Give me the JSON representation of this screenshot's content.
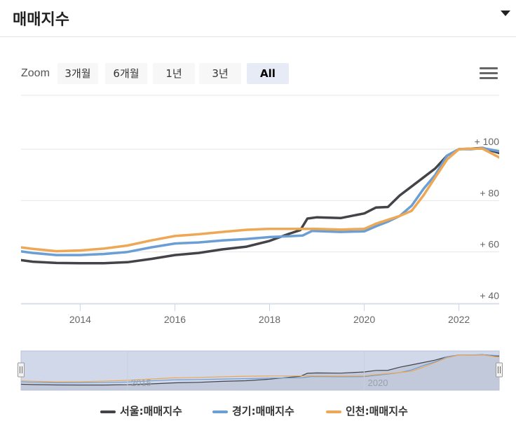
{
  "header": {
    "title": "매매지수",
    "toggle_icon": "caret-down-icon"
  },
  "zoom": {
    "label": "Zoom",
    "buttons": [
      "3개월",
      "6개월",
      "1년",
      "3년",
      "All"
    ],
    "active": "All"
  },
  "menu_icon": "hamburger-menu-icon",
  "chart_data": {
    "type": "line",
    "title": "",
    "xlabel": "",
    "ylabel": "",
    "x_ticks": [
      "2014",
      "2016",
      "2018",
      "2020",
      "2022"
    ],
    "y_ticks": [
      "+ 40",
      "+ 60",
      "+ 80",
      "+ 100"
    ],
    "ylim": [
      40,
      100
    ],
    "xlim": [
      2012.75,
      2022.85
    ],
    "grid": true,
    "legend_position": "bottom",
    "series": [
      {
        "name": "서울:매매지수",
        "color": "#434348",
        "points": [
          [
            2012.75,
            56.8
          ],
          [
            2013.0,
            56.2
          ],
          [
            2013.5,
            55.7
          ],
          [
            2014.0,
            55.6
          ],
          [
            2014.5,
            55.6
          ],
          [
            2015.0,
            56.0
          ],
          [
            2015.5,
            57.3
          ],
          [
            2016.0,
            58.8
          ],
          [
            2016.5,
            59.6
          ],
          [
            2017.0,
            61.0
          ],
          [
            2017.5,
            62.0
          ],
          [
            2018.0,
            64.3
          ],
          [
            2018.4,
            67.0
          ],
          [
            2018.65,
            68.5
          ],
          [
            2018.8,
            73.0
          ],
          [
            2019.0,
            73.5
          ],
          [
            2019.5,
            73.2
          ],
          [
            2020.0,
            75.0
          ],
          [
            2020.25,
            77.3
          ],
          [
            2020.5,
            77.5
          ],
          [
            2020.75,
            82.0
          ],
          [
            2021.0,
            85.5
          ],
          [
            2021.25,
            89.0
          ],
          [
            2021.5,
            92.5
          ],
          [
            2021.75,
            97.5
          ],
          [
            2022.0,
            100.0
          ],
          [
            2022.25,
            100.2
          ],
          [
            2022.5,
            100.5
          ],
          [
            2022.85,
            98.5
          ]
        ]
      },
      {
        "name": "경기:매매지수",
        "color": "#6a9ed4",
        "points": [
          [
            2012.75,
            60.2
          ],
          [
            2013.0,
            59.6
          ],
          [
            2013.5,
            58.8
          ],
          [
            2014.0,
            58.8
          ],
          [
            2014.5,
            59.2
          ],
          [
            2015.0,
            60.0
          ],
          [
            2015.5,
            61.8
          ],
          [
            2016.0,
            63.3
          ],
          [
            2016.5,
            63.7
          ],
          [
            2017.0,
            64.5
          ],
          [
            2017.5,
            65.0
          ],
          [
            2018.0,
            65.8
          ],
          [
            2018.4,
            66.1
          ],
          [
            2018.7,
            66.4
          ],
          [
            2018.9,
            68.2
          ],
          [
            2019.5,
            67.8
          ],
          [
            2020.0,
            68.0
          ],
          [
            2020.25,
            70.0
          ],
          [
            2020.5,
            71.8
          ],
          [
            2020.75,
            74.0
          ],
          [
            2021.0,
            78.0
          ],
          [
            2021.25,
            84.5
          ],
          [
            2021.5,
            90.0
          ],
          [
            2021.75,
            97.5
          ],
          [
            2022.0,
            100.0
          ],
          [
            2022.25,
            100.0
          ],
          [
            2022.5,
            100.4
          ],
          [
            2022.85,
            99.2
          ]
        ]
      },
      {
        "name": "인천:매매지수",
        "color": "#eea855",
        "points": [
          [
            2012.75,
            61.8
          ],
          [
            2013.0,
            61.2
          ],
          [
            2013.5,
            60.3
          ],
          [
            2014.0,
            60.6
          ],
          [
            2014.5,
            61.3
          ],
          [
            2015.0,
            62.5
          ],
          [
            2015.5,
            64.5
          ],
          [
            2016.0,
            66.2
          ],
          [
            2016.5,
            66.9
          ],
          [
            2017.0,
            67.8
          ],
          [
            2017.5,
            68.6
          ],
          [
            2018.0,
            69.0
          ],
          [
            2018.5,
            69.0
          ],
          [
            2019.0,
            69.0
          ],
          [
            2019.5,
            68.7
          ],
          [
            2020.0,
            69.0
          ],
          [
            2020.25,
            71.0
          ],
          [
            2020.5,
            72.5
          ],
          [
            2020.75,
            74.0
          ],
          [
            2021.0,
            76.0
          ],
          [
            2021.25,
            82.0
          ],
          [
            2021.5,
            89.0
          ],
          [
            2021.75,
            96.0
          ],
          [
            2022.0,
            100.0
          ],
          [
            2022.25,
            100.2
          ],
          [
            2022.5,
            100.2
          ],
          [
            2022.85,
            96.8
          ]
        ]
      }
    ],
    "navigator": {
      "x_ticks": [
        "2015",
        "2020"
      ]
    }
  }
}
